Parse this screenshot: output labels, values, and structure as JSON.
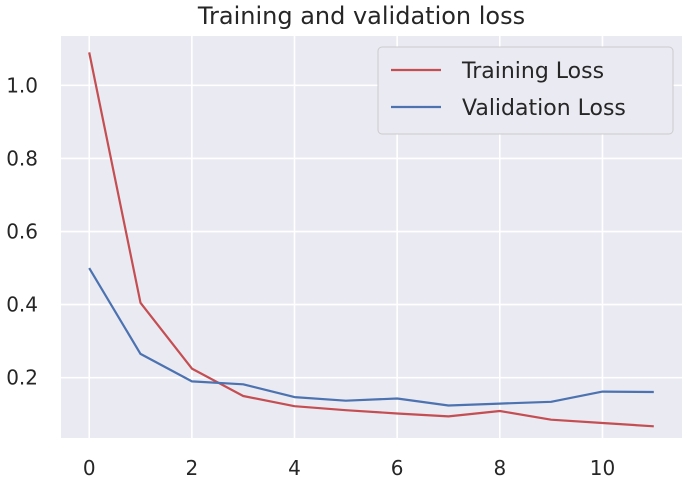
{
  "chart_data": {
    "type": "line",
    "title": "Training and validation loss",
    "xlabel": "",
    "ylabel": "",
    "x": [
      0,
      1,
      2,
      3,
      4,
      5,
      6,
      7,
      8,
      9,
      10,
      11
    ],
    "xlim": [
      -0.55,
      11.55
    ],
    "ylim": [
      0.035,
      1.135
    ],
    "xticks": [
      0,
      2,
      4,
      6,
      8,
      10
    ],
    "yticks": [
      0.2,
      0.4,
      0.6,
      0.8,
      1.0
    ],
    "ytick_labels": [
      "0.2",
      "0.4",
      "0.6",
      "0.8",
      "1.0"
    ],
    "xtick_labels": [
      "0",
      "2",
      "4",
      "6",
      "8",
      "10"
    ],
    "grid": true,
    "legend_position": "top-right",
    "series": [
      {
        "name": "Training Loss",
        "color": "#c44e52",
        "values": [
          1.09,
          0.405,
          0.225,
          0.15,
          0.122,
          0.111,
          0.102,
          0.094,
          0.109,
          0.085,
          0.076,
          0.067
        ]
      },
      {
        "name": "Validation Loss",
        "color": "#4c72b0",
        "values": [
          0.5,
          0.265,
          0.19,
          0.182,
          0.147,
          0.137,
          0.143,
          0.124,
          0.129,
          0.134,
          0.162,
          0.161
        ]
      }
    ]
  },
  "colors": {
    "plot_background": "#eaeaf2",
    "grid": "#ffffff",
    "text": "#262626"
  }
}
